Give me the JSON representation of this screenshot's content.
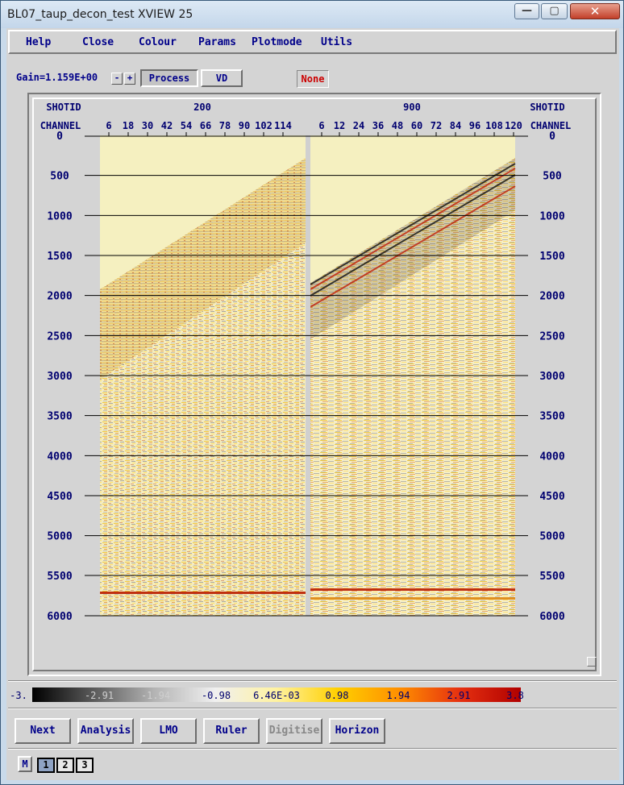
{
  "window": {
    "title": "BL07_taup_decon_test XVIEW 25"
  },
  "menu": [
    "Help",
    "Close",
    "Colour",
    "Params",
    "Plotmode",
    "Utils"
  ],
  "toolbar": {
    "gain_label": "Gain=1.159E+00",
    "gain_minus": "-",
    "gain_plus": "+",
    "process_label": "Process",
    "vd_label": "VD",
    "status": "None"
  },
  "plot": {
    "shotid_label": "SHOTID",
    "channel_label": "CHANNEL",
    "shot_left": "200",
    "shot_right": "900",
    "channels_left": [
      "6",
      "18",
      "30",
      "42",
      "54",
      "66",
      "78",
      "90",
      "102",
      "114"
    ],
    "channels_right": [
      "6",
      "12",
      "24",
      "36",
      "48",
      "60",
      "72",
      "84",
      "96",
      "108",
      "120"
    ],
    "time_ticks": [
      "0",
      "500",
      "1000",
      "1500",
      "2000",
      "2500",
      "3000",
      "3500",
      "4000",
      "4500",
      "5000",
      "5500",
      "6000"
    ]
  },
  "colorbar": {
    "labels": [
      "-3.",
      "-2.91",
      "-1.94",
      "-0.98",
      "6.46E-03",
      "0.98",
      "1.94",
      "2.91",
      "3.8"
    ],
    "colors": [
      "#000000",
      "#5a5a5a",
      "#b4b4b4",
      "#f0f0f0",
      "#fff2a0",
      "#ffd000",
      "#ff9000",
      "#e63010",
      "#b00000"
    ]
  },
  "buttons": [
    "Next",
    "Analysis",
    "LMO",
    "Ruler",
    "Digitise",
    "Horizon"
  ],
  "mode_button": "M",
  "pages": [
    "1",
    "2",
    "3"
  ]
}
